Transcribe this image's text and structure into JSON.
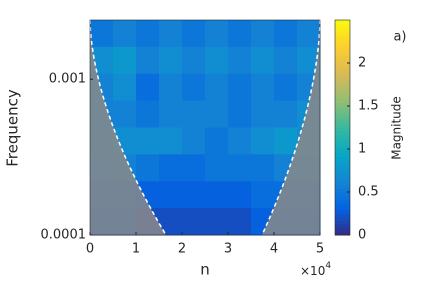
{
  "chart_data": {
    "type": "heatmap",
    "annotation": "a)",
    "xlabel": "n",
    "ylabel": "Frequency",
    "x_multiplier": {
      "base": "×10",
      "exponent": "4"
    },
    "xlim": [
      0,
      5
    ],
    "xticks": [
      0,
      1,
      2,
      3,
      4,
      5
    ],
    "ylim": [
      0.0001,
      0.0024
    ],
    "yticks": [
      0.0001,
      0.001
    ],
    "ylog": true,
    "colorbar_label": "Magnitude",
    "clim": [
      0,
      2.5
    ],
    "cticks": [
      0,
      0.5,
      1,
      1.5,
      2
    ],
    "z": [
      [
        0.5,
        0.6,
        0.5,
        0.6,
        0.5,
        0.6,
        0.5,
        0.6,
        0.5,
        0.6
      ],
      [
        0.7,
        0.8,
        0.6,
        0.7,
        0.6,
        0.7,
        0.6,
        0.7,
        0.6,
        0.7
      ],
      [
        0.6,
        0.7,
        0.4,
        0.6,
        0.5,
        0.6,
        0.5,
        0.6,
        0.5,
        0.6
      ],
      [
        0.6,
        0.6,
        0.5,
        0.6,
        0.6,
        0.6,
        0.5,
        0.6,
        0.6,
        0.7
      ],
      [
        0.6,
        0.7,
        0.7,
        0.7,
        0.6,
        0.5,
        0.6,
        0.7,
        0.8,
        0.7
      ],
      [
        0.5,
        0.6,
        0.5,
        0.4,
        0.4,
        0.5,
        0.5,
        0.5,
        0.6,
        0.6
      ],
      [
        0.4,
        0.4,
        0.3,
        0.3,
        0.3,
        0.3,
        0.3,
        0.4,
        0.4,
        0.4
      ],
      [
        0.3,
        0.3,
        0.2,
        0.2,
        0.2,
        0.2,
        0.2,
        0.3,
        0.3,
        0.3
      ]
    ]
  }
}
